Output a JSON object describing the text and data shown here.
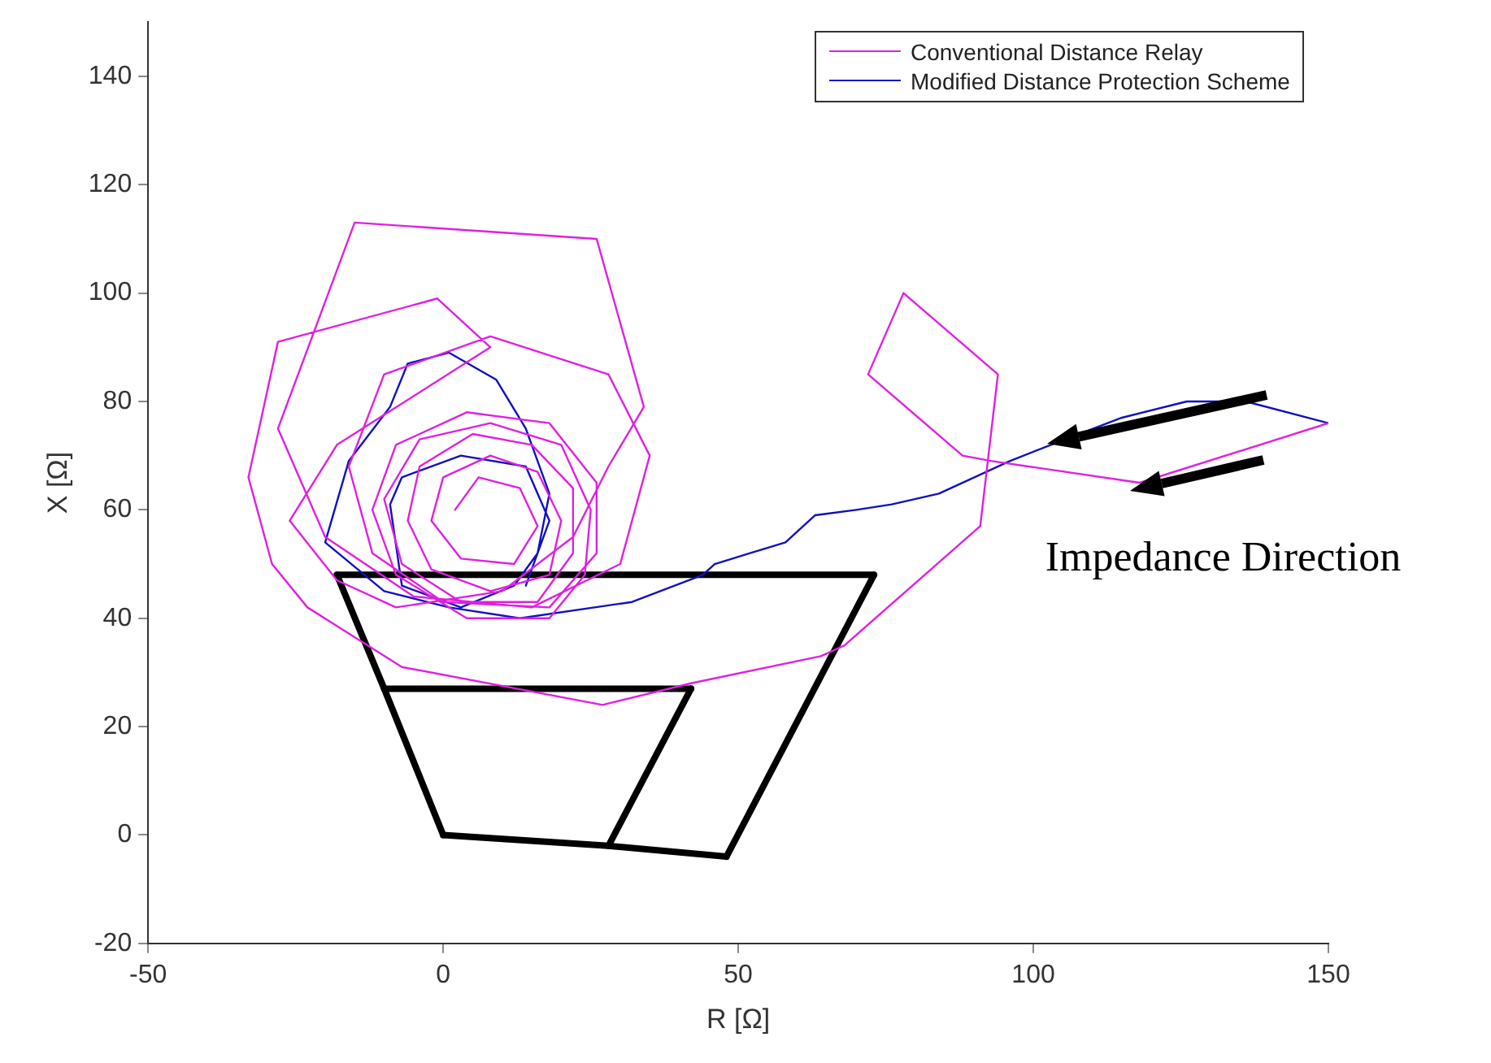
{
  "chart_data": {
    "type": "line",
    "xlabel": "R [Ω]",
    "ylabel": "X [Ω]",
    "xlim": [
      -50,
      150
    ],
    "xticks": [
      -50,
      0,
      50,
      100,
      150
    ],
    "ylim": [
      -20,
      150
    ],
    "yticks": [
      -20,
      0,
      20,
      40,
      60,
      80,
      100,
      120,
      140
    ],
    "grid": false,
    "legend": "top right",
    "marker": "none",
    "line_style": "solid",
    "annotations": [
      {
        "text": "Impedance Direction",
        "x": 118,
        "y": 65
      }
    ],
    "series": [
      {
        "name": "Conventional Distance Relay",
        "color": "#e020e0",
        "x": [
          150,
          118,
          93,
          88,
          72,
          78,
          94,
          91,
          68,
          64,
          42,
          27,
          -7,
          -23,
          -29,
          -33,
          -28,
          -1,
          8,
          -18,
          -26,
          -18,
          -8,
          10,
          22,
          28,
          34,
          26,
          -15,
          -28,
          -20,
          -5,
          15,
          30,
          35,
          28,
          8,
          -10,
          -16,
          -12,
          0,
          18,
          26,
          26,
          18,
          4,
          -8,
          -12,
          -8,
          4,
          18,
          24,
          25,
          20,
          8,
          -4,
          -10,
          -7,
          3,
          16,
          22,
          22,
          15,
          5,
          -4,
          -6,
          -2,
          8,
          18,
          20,
          16,
          8,
          0,
          -2,
          3,
          12,
          16,
          13,
          6,
          2
        ],
        "values": [
          76,
          65,
          69,
          70,
          85,
          100,
          85,
          57,
          35,
          33,
          28,
          24,
          31,
          42,
          50,
          66,
          91,
          99,
          90,
          72,
          58,
          47,
          42,
          45,
          55,
          68,
          79,
          110,
          113,
          75,
          55,
          44,
          42,
          50,
          70,
          85,
          92,
          85,
          68,
          52,
          43,
          42,
          52,
          65,
          76,
          78,
          72,
          60,
          48,
          40,
          40,
          48,
          60,
          72,
          76,
          73,
          62,
          50,
          43,
          43,
          52,
          64,
          72,
          74,
          68,
          58,
          49,
          45,
          48,
          58,
          67,
          70,
          66,
          58,
          51,
          50,
          57,
          64,
          66,
          60
        ]
      },
      {
        "name": "Modified Distance Protection Scheme",
        "color": "#1010c0",
        "x": [
          150,
          136,
          126,
          115,
          103,
          96,
          84,
          76,
          70,
          63,
          58,
          52,
          46,
          44,
          32,
          13,
          1,
          -10,
          -20,
          -16,
          -9,
          -6,
          1,
          9,
          14,
          18,
          16,
          12,
          3,
          -7,
          -9,
          -7,
          3,
          14,
          18,
          14
        ],
        "values": [
          76,
          80,
          80,
          77,
          72,
          69,
          63,
          61,
          60,
          59,
          54,
          52,
          50,
          48,
          43,
          40,
          42,
          45,
          54,
          69,
          79,
          87,
          89,
          84,
          75,
          63,
          52,
          46,
          42,
          46,
          61,
          66,
          70,
          68,
          58,
          46
        ]
      },
      {
        "color": "#000000",
        "x": [
          -18,
          73
        ],
        "values": [
          48,
          48
        ]
      },
      {
        "color": "#000000",
        "x": [
          -18,
          -10,
          0
        ],
        "values": [
          48,
          27,
          0
        ]
      },
      {
        "color": "#000000",
        "x": [
          0,
          28,
          48
        ],
        "values": [
          0,
          -2,
          -4
        ]
      },
      {
        "color": "#000000",
        "x": [
          48,
          73
        ],
        "values": [
          -4,
          48
        ]
      },
      {
        "color": "#000000",
        "x": [
          -10,
          42
        ],
        "values": [
          27,
          27
        ]
      },
      {
        "color": "#000000",
        "x": [
          28,
          42
        ],
        "values": [
          -2,
          27
        ]
      }
    ]
  }
}
